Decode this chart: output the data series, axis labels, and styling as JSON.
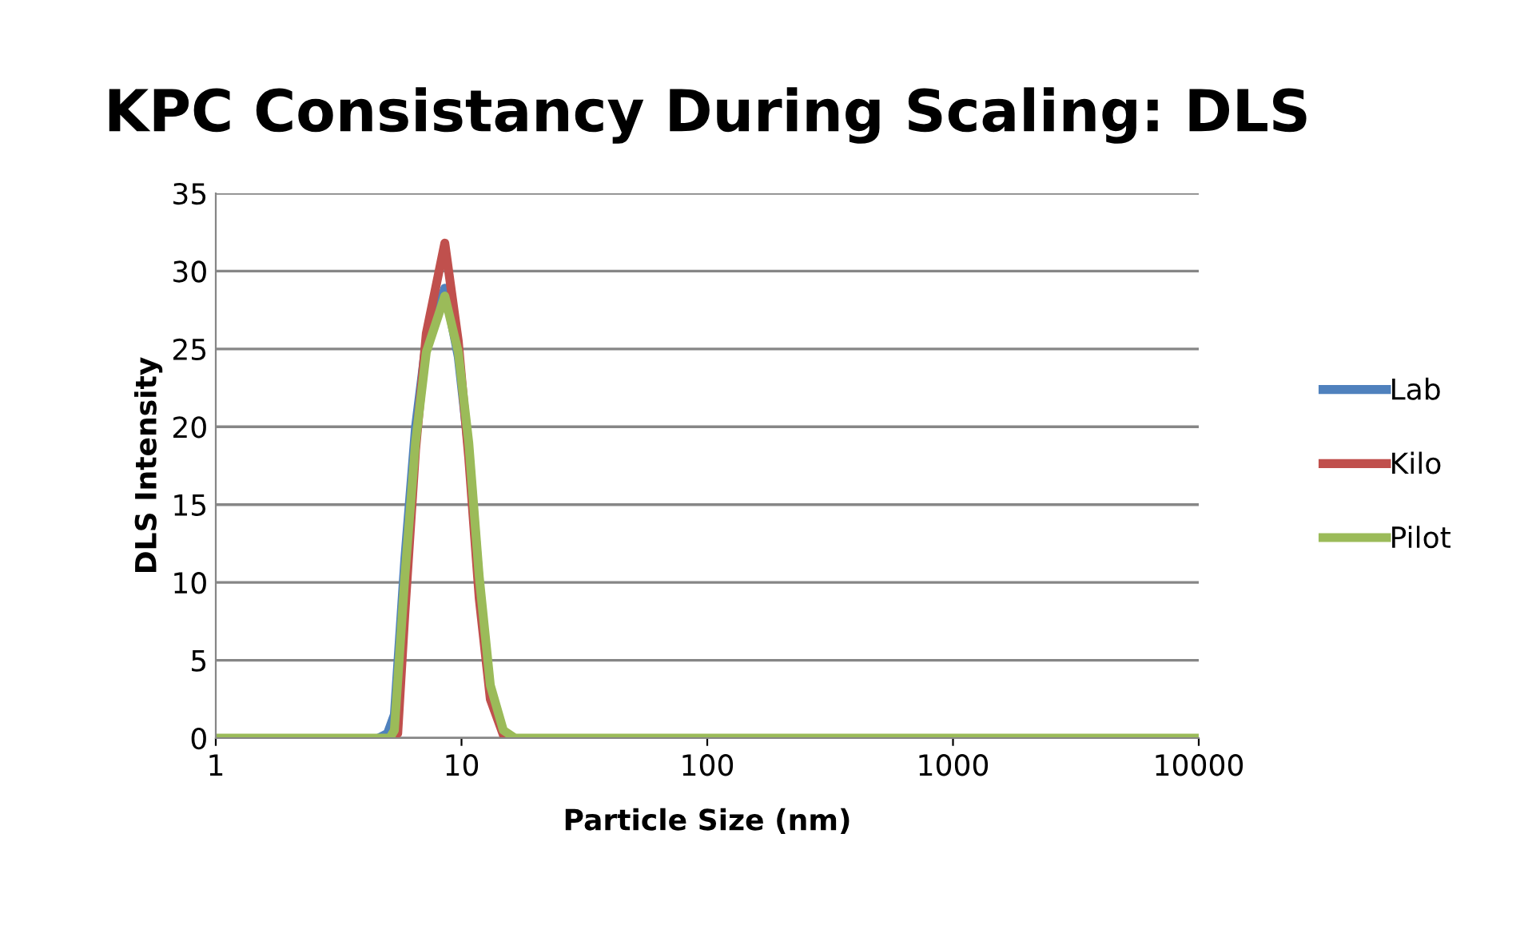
{
  "chart_data": {
    "type": "line",
    "title": "KPC Consistancy During Scaling: DLS",
    "xlabel": "Particle Size (nm)",
    "ylabel": "DLS Intensity",
    "log": "x",
    "xlim": [
      1,
      10000
    ],
    "xticks": [
      1,
      10,
      100,
      1000,
      10000
    ],
    "ylim": [
      0,
      35
    ],
    "yticks": [
      0,
      5,
      10,
      15,
      20,
      25,
      30,
      35
    ],
    "grid": "y",
    "legend": "right",
    "line_style": "solid",
    "marker": "none",
    "series": [
      {
        "name": "Lab",
        "color": "#4f81bd",
        "x": [
          4.6,
          5.0,
          5.33,
          5.88,
          6.5,
          7.19,
          8.55,
          9.7,
          10.7,
          11.8
        ],
        "values": [
          0,
          0.3,
          1.5,
          11.5,
          20,
          25.5,
          28.9,
          24.5,
          18.5,
          10
        ]
      },
      {
        "name": "Kilo",
        "color": "#c0504d",
        "x": [
          5.5,
          5.88,
          6.5,
          7.19,
          8.55,
          9.7,
          10.7,
          11.8,
          13.1,
          14.8
        ],
        "values": [
          0.3,
          8,
          18.5,
          26,
          31.8,
          25.5,
          18,
          9,
          2.5,
          0.2
        ]
      },
      {
        "name": "Pilot",
        "color": "#9bbb59",
        "x": [
          1,
          3,
          4.6,
          5.1,
          5.33,
          5.88,
          6.5,
          7.19,
          8.55,
          9.7,
          10.7,
          11.8,
          13.1,
          14.8,
          16.5,
          30,
          100,
          1000,
          10000
        ],
        "values": [
          0,
          0,
          0,
          0,
          0.5,
          10.4,
          19,
          24.8,
          28.4,
          24.8,
          19,
          10.4,
          3.4,
          0.5,
          0,
          0,
          0,
          0,
          0
        ]
      }
    ]
  }
}
